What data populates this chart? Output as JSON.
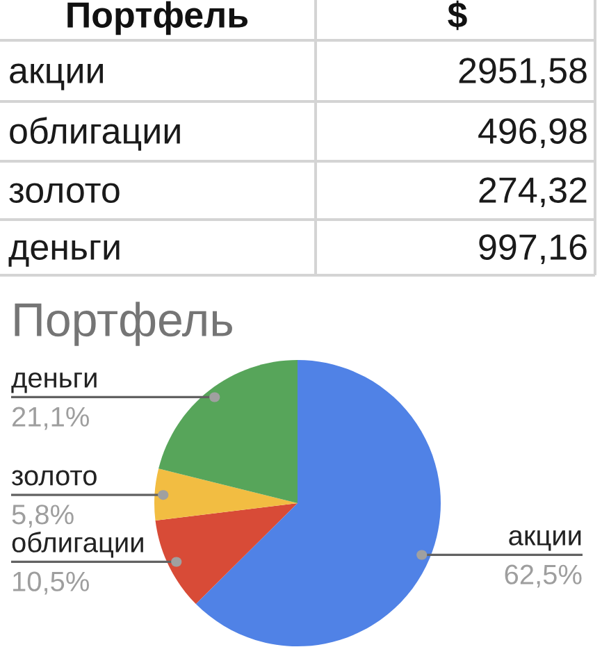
{
  "chart_data": {
    "type": "pie",
    "title": "Портфель",
    "categories": [
      "акции",
      "облигации",
      "золото",
      "деньги"
    ],
    "values": [
      62.5,
      10.5,
      5.8,
      21.1
    ],
    "colors": [
      "#5082e6",
      "#d84b37",
      "#f2bd42",
      "#57a55a"
    ],
    "value_labels": [
      "62,5%",
      "10,5%",
      "5,8%",
      "21,1%"
    ],
    "annotations": [
      "Портфель",
      "$",
      "2951,58",
      "496,98",
      "274,32",
      "997,16"
    ]
  }
}
